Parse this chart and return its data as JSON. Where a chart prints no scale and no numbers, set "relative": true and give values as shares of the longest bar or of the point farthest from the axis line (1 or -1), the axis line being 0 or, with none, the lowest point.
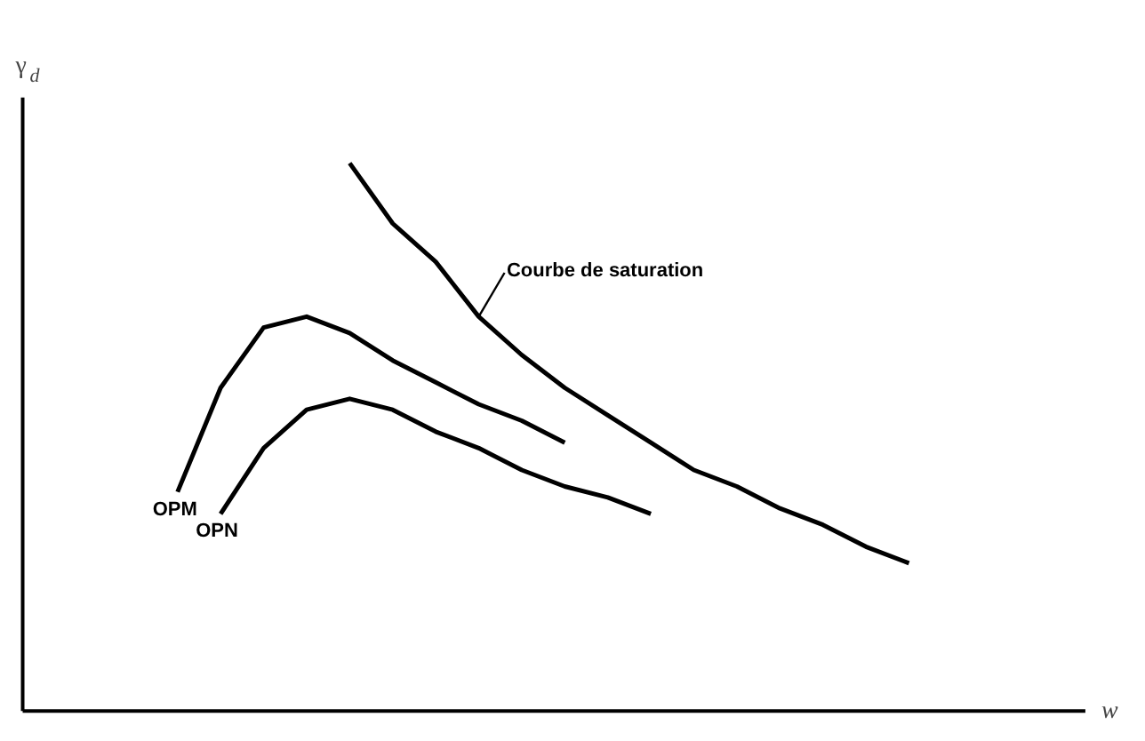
{
  "chart_data": {
    "type": "line",
    "relative": true,
    "xlabel": "w",
    "ylabel": "γ$_{d}$",
    "marker": "none",
    "line_style": "solid",
    "categories": [
      null,
      null,
      null,
      null,
      null,
      null,
      null,
      null,
      null,
      null,
      null,
      null,
      null,
      null,
      null,
      null,
      null,
      null,
      null,
      null,
      null,
      null,
      null,
      null,
      null
    ],
    "series": [
      {
        "name": "OPM",
        "color": "#000000",
        "values": [
          null,
          null,
          null,
          0.4,
          0.59,
          0.7,
          0.72,
          0.69,
          0.64,
          0.6,
          0.56,
          0.53,
          0.49,
          null,
          null,
          null,
          null,
          null,
          null,
          null,
          null,
          null,
          null,
          null,
          null
        ]
      },
      {
        "name": "OPN",
        "color": "#000000",
        "values": [
          null,
          null,
          null,
          null,
          0.36,
          0.48,
          0.55,
          0.57,
          0.55,
          0.51,
          0.48,
          0.44,
          0.41,
          0.39,
          0.36,
          null,
          null,
          null,
          null,
          null,
          null,
          null,
          null,
          null,
          null
        ]
      },
      {
        "name": "Courbe de saturation",
        "color": "#000000",
        "values": [
          null,
          null,
          null,
          null,
          null,
          null,
          null,
          1,
          0.89,
          0.82,
          0.72,
          0.65,
          0.59,
          0.54,
          0.49,
          0.44,
          0.41,
          0.37,
          0.34,
          0.3,
          0.27,
          null,
          null,
          null,
          null
        ]
      }
    ]
  }
}
